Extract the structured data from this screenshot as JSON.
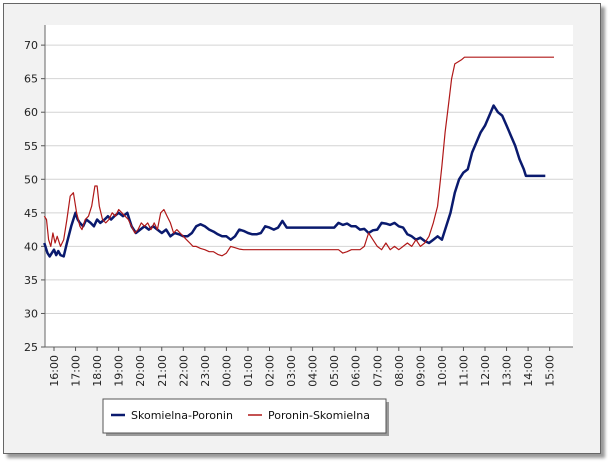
{
  "chart_data": {
    "type": "line",
    "title": "",
    "xlabel": "",
    "ylabel": "",
    "ylim": [
      25,
      73
    ],
    "yticks": [
      25,
      30,
      35,
      40,
      45,
      50,
      55,
      60,
      65,
      70
    ],
    "xticks": [
      "16:00",
      "17:00",
      "18:00",
      "19:00",
      "20:00",
      "21:00",
      "22:00",
      "23:00",
      "00:00",
      "01:00",
      "02:00",
      "03:00",
      "04:00",
      "05:00",
      "06:00",
      "07:00",
      "08:00",
      "09:00",
      "10:00",
      "11:00",
      "12:00",
      "13:00",
      "14:00",
      "15:00"
    ],
    "grid": "horizontal",
    "legend_position": "bottom-left",
    "x_units": "hours from 16:00",
    "series": [
      {
        "name": "Skomielna-Poronin",
        "color": "#0a1a6e",
        "points": [
          [
            -0.45,
            40.5
          ],
          [
            -0.3,
            39
          ],
          [
            -0.2,
            38.5
          ],
          [
            -0.1,
            39
          ],
          [
            0.0,
            39.5
          ],
          [
            0.1,
            38.7
          ],
          [
            0.2,
            39.3
          ],
          [
            0.3,
            38.7
          ],
          [
            0.45,
            38.5
          ],
          [
            0.6,
            40.5
          ],
          [
            0.8,
            43
          ],
          [
            1.0,
            45
          ],
          [
            1.1,
            44
          ],
          [
            1.2,
            43.5
          ],
          [
            1.35,
            43
          ],
          [
            1.5,
            44
          ],
          [
            1.7,
            43.5
          ],
          [
            1.85,
            43
          ],
          [
            2.0,
            44
          ],
          [
            2.15,
            43.5
          ],
          [
            2.35,
            44
          ],
          [
            2.5,
            44.5
          ],
          [
            2.65,
            44
          ],
          [
            2.8,
            44.5
          ],
          [
            3.0,
            45
          ],
          [
            3.2,
            44.5
          ],
          [
            3.4,
            45
          ],
          [
            3.5,
            44
          ],
          [
            3.6,
            43
          ],
          [
            3.8,
            42
          ],
          [
            4.0,
            42.5
          ],
          [
            4.2,
            43
          ],
          [
            4.4,
            42.5
          ],
          [
            4.6,
            43
          ],
          [
            4.8,
            42.5
          ],
          [
            5.0,
            42
          ],
          [
            5.2,
            42.5
          ],
          [
            5.4,
            41.5
          ],
          [
            5.6,
            42
          ],
          [
            5.8,
            41.8
          ],
          [
            6.0,
            41.5
          ],
          [
            6.2,
            41.5
          ],
          [
            6.4,
            42
          ],
          [
            6.6,
            43
          ],
          [
            6.8,
            43.3
          ],
          [
            7.0,
            43
          ],
          [
            7.2,
            42.5
          ],
          [
            7.4,
            42.2
          ],
          [
            7.6,
            41.8
          ],
          [
            7.8,
            41.5
          ],
          [
            8.0,
            41.5
          ],
          [
            8.2,
            41
          ],
          [
            8.4,
            41.5
          ],
          [
            8.6,
            42.5
          ],
          [
            8.8,
            42.3
          ],
          [
            9.0,
            42
          ],
          [
            9.2,
            41.8
          ],
          [
            9.4,
            41.8
          ],
          [
            9.6,
            42
          ],
          [
            9.8,
            43
          ],
          [
            10.0,
            42.8
          ],
          [
            10.2,
            42.5
          ],
          [
            10.4,
            42.8
          ],
          [
            10.6,
            43.8
          ],
          [
            10.8,
            42.8
          ],
          [
            11.0,
            42.8
          ],
          [
            11.5,
            42.8
          ],
          [
            12.0,
            42.8
          ],
          [
            12.5,
            42.8
          ],
          [
            13.0,
            42.8
          ],
          [
            13.2,
            43.5
          ],
          [
            13.4,
            43.2
          ],
          [
            13.6,
            43.4
          ],
          [
            13.8,
            43
          ],
          [
            14.0,
            43
          ],
          [
            14.2,
            42.5
          ],
          [
            14.4,
            42.6
          ],
          [
            14.6,
            42
          ],
          [
            14.8,
            42.4
          ],
          [
            15.0,
            42.5
          ],
          [
            15.2,
            43.5
          ],
          [
            15.4,
            43.4
          ],
          [
            15.6,
            43.2
          ],
          [
            15.8,
            43.5
          ],
          [
            16.0,
            43
          ],
          [
            16.2,
            42.8
          ],
          [
            16.4,
            41.8
          ],
          [
            16.6,
            41.5
          ],
          [
            16.8,
            41
          ],
          [
            17.0,
            41.3
          ],
          [
            17.2,
            40.8
          ],
          [
            17.4,
            40.5
          ],
          [
            17.6,
            41
          ],
          [
            17.8,
            41.5
          ],
          [
            18.0,
            41
          ],
          [
            18.2,
            43
          ],
          [
            18.4,
            45
          ],
          [
            18.6,
            48
          ],
          [
            18.8,
            50
          ],
          [
            19.0,
            51
          ],
          [
            19.2,
            51.5
          ],
          [
            19.4,
            54
          ],
          [
            19.6,
            55.5
          ],
          [
            19.8,
            57
          ],
          [
            20.0,
            58
          ],
          [
            20.2,
            59.5
          ],
          [
            20.4,
            61
          ],
          [
            20.6,
            60
          ],
          [
            20.8,
            59.5
          ],
          [
            21.0,
            58
          ],
          [
            21.2,
            56.5
          ],
          [
            21.4,
            55
          ],
          [
            21.6,
            53
          ],
          [
            21.8,
            51.5
          ],
          [
            21.9,
            50.5
          ],
          [
            22.0,
            50.5
          ],
          [
            22.4,
            50.5
          ],
          [
            22.8,
            50.5
          ]
        ]
      },
      {
        "name": "Poronin-Skomielna",
        "color": "#b01818",
        "points": [
          [
            -0.45,
            44.5
          ],
          [
            -0.35,
            44
          ],
          [
            -0.25,
            41
          ],
          [
            -0.15,
            40
          ],
          [
            -0.05,
            42
          ],
          [
            0.05,
            40.5
          ],
          [
            0.15,
            41.5
          ],
          [
            0.3,
            40
          ],
          [
            0.45,
            41
          ],
          [
            0.6,
            44
          ],
          [
            0.75,
            47.5
          ],
          [
            0.9,
            48
          ],
          [
            1.05,
            45
          ],
          [
            1.2,
            43
          ],
          [
            1.3,
            42.5
          ],
          [
            1.45,
            44
          ],
          [
            1.6,
            44.5
          ],
          [
            1.75,
            46
          ],
          [
            1.9,
            49
          ],
          [
            2.0,
            49
          ],
          [
            2.1,
            46
          ],
          [
            2.25,
            44
          ],
          [
            2.4,
            43.5
          ],
          [
            2.55,
            44
          ],
          [
            2.7,
            45
          ],
          [
            2.85,
            44.5
          ],
          [
            3.0,
            45.5
          ],
          [
            3.15,
            45
          ],
          [
            3.3,
            44.5
          ],
          [
            3.45,
            44
          ],
          [
            3.6,
            43
          ],
          [
            3.75,
            42
          ],
          [
            3.9,
            42.5
          ],
          [
            4.05,
            43.5
          ],
          [
            4.2,
            43
          ],
          [
            4.35,
            43.5
          ],
          [
            4.5,
            42.5
          ],
          [
            4.65,
            43.5
          ],
          [
            4.8,
            42.5
          ],
          [
            4.95,
            45
          ],
          [
            5.1,
            45.5
          ],
          [
            5.25,
            44.5
          ],
          [
            5.4,
            43.5
          ],
          [
            5.55,
            42
          ],
          [
            5.7,
            42.5
          ],
          [
            5.85,
            42
          ],
          [
            6.0,
            41.5
          ],
          [
            6.15,
            41
          ],
          [
            6.3,
            40.5
          ],
          [
            6.45,
            40
          ],
          [
            6.6,
            40
          ],
          [
            6.8,
            39.7
          ],
          [
            7.0,
            39.5
          ],
          [
            7.2,
            39.2
          ],
          [
            7.4,
            39.2
          ],
          [
            7.6,
            38.8
          ],
          [
            7.8,
            38.6
          ],
          [
            8.0,
            39
          ],
          [
            8.2,
            40
          ],
          [
            8.4,
            39.8
          ],
          [
            8.6,
            39.6
          ],
          [
            8.8,
            39.5
          ],
          [
            9.0,
            39.5
          ],
          [
            9.5,
            39.5
          ],
          [
            10.0,
            39.5
          ],
          [
            10.5,
            39.5
          ],
          [
            11.0,
            39.5
          ],
          [
            11.5,
            39.5
          ],
          [
            12.0,
            39.5
          ],
          [
            12.5,
            39.5
          ],
          [
            13.0,
            39.5
          ],
          [
            13.2,
            39.5
          ],
          [
            13.4,
            39
          ],
          [
            13.6,
            39.2
          ],
          [
            13.8,
            39.5
          ],
          [
            14.0,
            39.5
          ],
          [
            14.2,
            39.5
          ],
          [
            14.4,
            40
          ],
          [
            14.6,
            42
          ],
          [
            14.8,
            41
          ],
          [
            15.0,
            40
          ],
          [
            15.2,
            39.5
          ],
          [
            15.4,
            40.5
          ],
          [
            15.6,
            39.5
          ],
          [
            15.8,
            40
          ],
          [
            16.0,
            39.5
          ],
          [
            16.2,
            40
          ],
          [
            16.4,
            40.5
          ],
          [
            16.6,
            40
          ],
          [
            16.8,
            41
          ],
          [
            17.0,
            40
          ],
          [
            17.2,
            40.5
          ],
          [
            17.4,
            41.5
          ],
          [
            17.6,
            43.5
          ],
          [
            17.8,
            46
          ],
          [
            18.0,
            52
          ],
          [
            18.15,
            57
          ],
          [
            18.3,
            61
          ],
          [
            18.45,
            65
          ],
          [
            18.6,
            67.2
          ],
          [
            18.75,
            67.5
          ],
          [
            18.9,
            67.8
          ],
          [
            19.05,
            68.2
          ],
          [
            19.5,
            68.2
          ],
          [
            20.0,
            68.2
          ],
          [
            21.0,
            68.2
          ],
          [
            22.0,
            68.2
          ],
          [
            23.2,
            68.2
          ]
        ]
      }
    ]
  }
}
